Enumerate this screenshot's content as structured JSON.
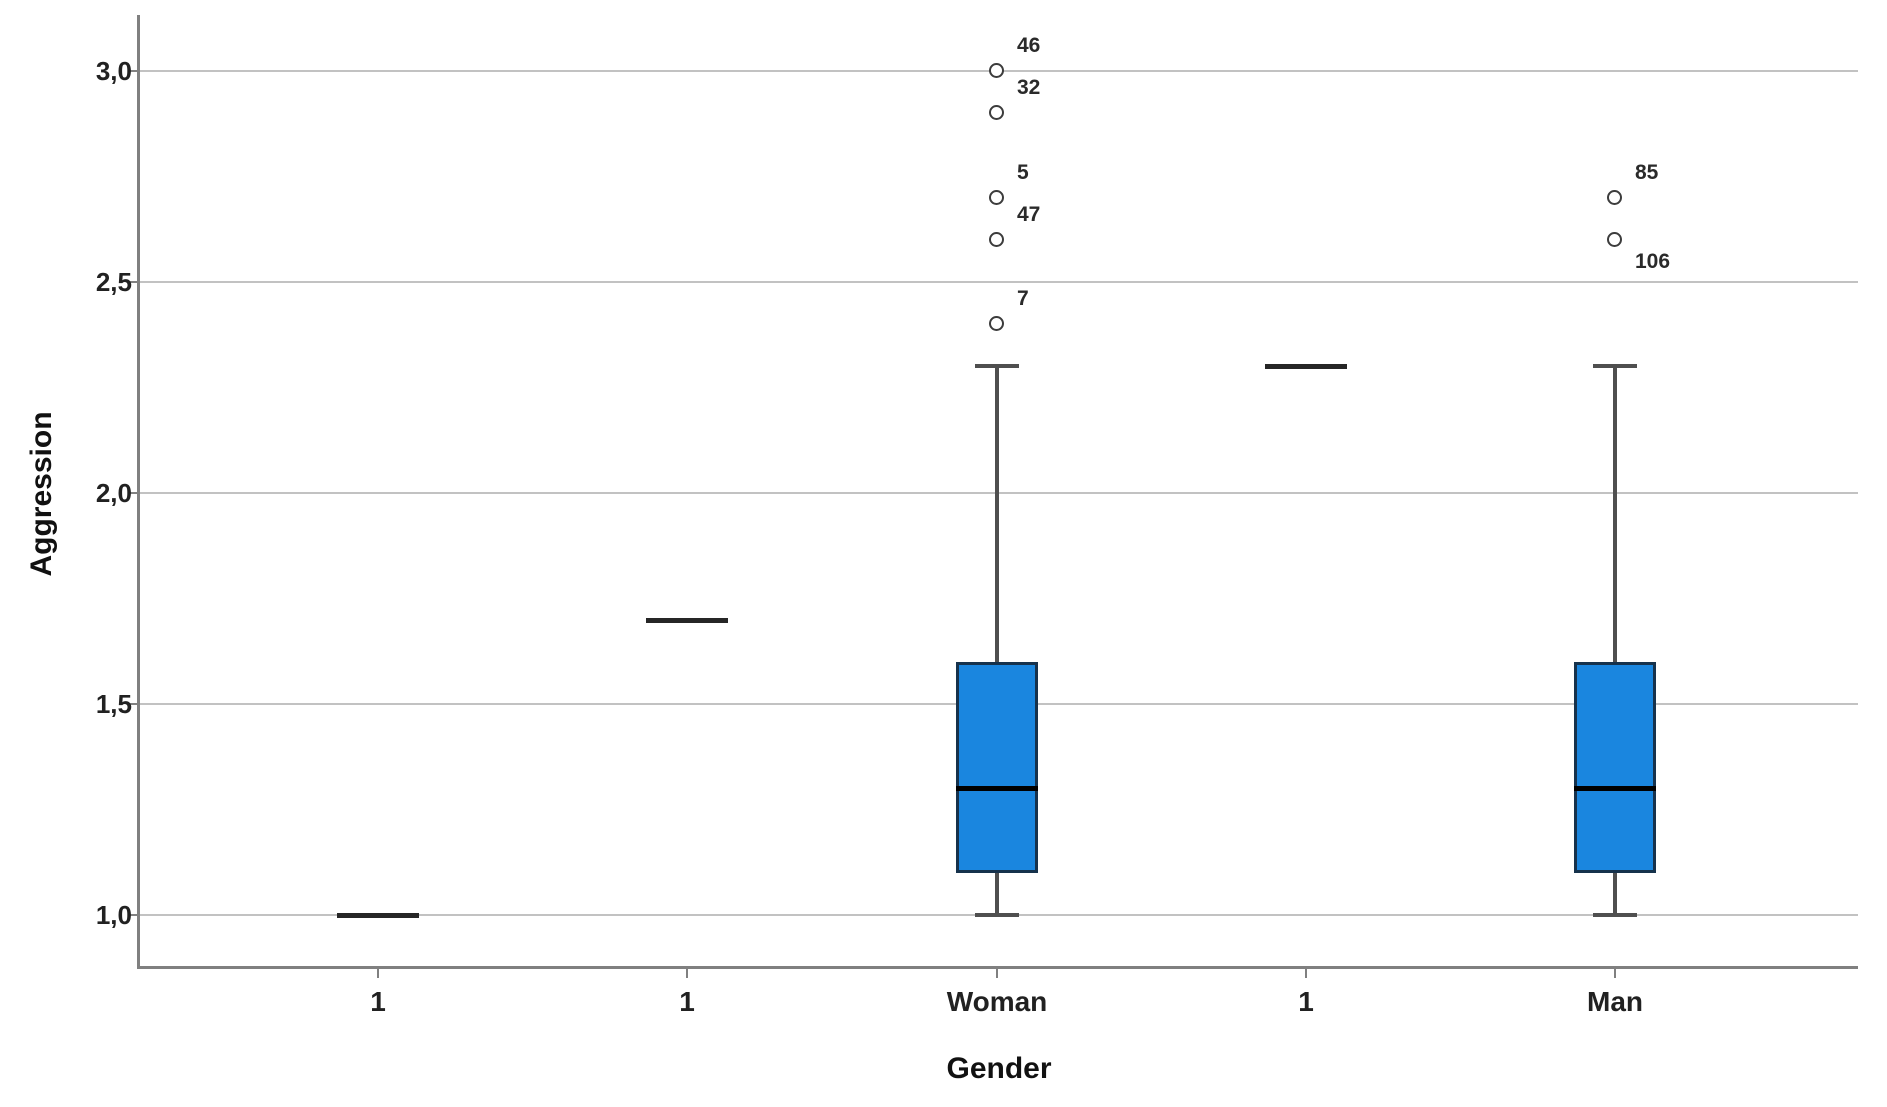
{
  "chart_data": {
    "type": "boxplot",
    "title": "",
    "xlabel": "Gender",
    "ylabel": "Aggression",
    "ylim": [
      0.87,
      3.13
    ],
    "grid": true,
    "legend": "none",
    "decimal_separator": ",",
    "yticks": [
      {
        "value": 1.0,
        "label": "1,0"
      },
      {
        "value": 1.5,
        "label": "1,5"
      },
      {
        "value": 2.0,
        "label": "2,0"
      },
      {
        "value": 2.5,
        "label": "2,5"
      },
      {
        "value": 3.0,
        "label": "3,0"
      }
    ],
    "categories": [
      {
        "label": "1",
        "kind": "line",
        "value": 1.0
      },
      {
        "label": "1",
        "kind": "line",
        "value": 1.7
      },
      {
        "label": "Woman",
        "kind": "box",
        "whisker_low": 1.0,
        "q1": 1.1,
        "median": 1.3,
        "q3": 1.6,
        "whisker_high": 2.3,
        "outliers": [
          {
            "value": 2.4,
            "case": "7",
            "label_pos": "above"
          },
          {
            "value": 2.6,
            "case": "47",
            "label_pos": "above"
          },
          {
            "value": 2.7,
            "case": "5",
            "label_pos": "above"
          },
          {
            "value": 2.9,
            "case": "32",
            "label_pos": "above"
          },
          {
            "value": 3.0,
            "case": "46",
            "label_pos": "above"
          }
        ]
      },
      {
        "label": "1",
        "kind": "line",
        "value": 2.3
      },
      {
        "label": "Man",
        "kind": "box",
        "whisker_low": 1.0,
        "q1": 1.1,
        "median": 1.3,
        "q3": 1.6,
        "whisker_high": 2.3,
        "outliers": [
          {
            "value": 2.7,
            "case": "85",
            "label_pos": "above"
          },
          {
            "value": 2.6,
            "case": "106",
            "label_pos": "below"
          }
        ]
      }
    ],
    "colors": {
      "box_fill": "#1A86DF",
      "box_border": "#16324C",
      "median": "#000000",
      "whisker": "#4F4F4F",
      "grid": "#C2C2C2",
      "axis": "#808080",
      "text": "#212121"
    }
  }
}
